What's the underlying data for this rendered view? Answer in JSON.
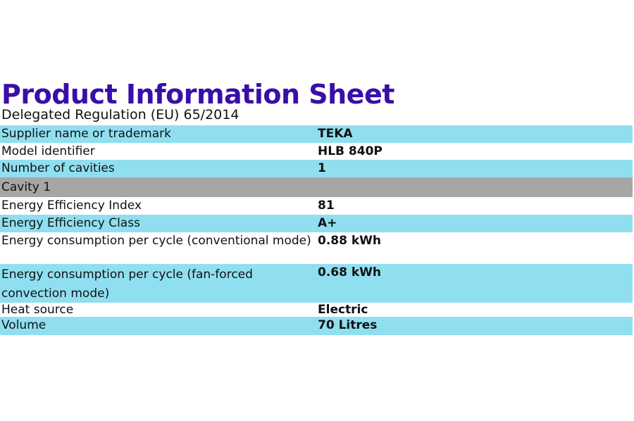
{
  "header": {
    "title": "Product Information Sheet",
    "subtitle": "Delegated Regulation (EU) 65/2014"
  },
  "table": {
    "rows": [
      [
        "Supplier name or trademark",
        "TEKA"
      ],
      [
        "Model identifier",
        "HLB 840P"
      ],
      [
        "Number of cavities",
        "1"
      ],
      [
        "Cavity 1"
      ],
      [
        "Energy Efficiency Index",
        "81"
      ],
      [
        "Energy Efficiency Class",
        "A+"
      ],
      [
        "Energy consumption per cycle (conventional mode)",
        "0.88 kWh"
      ],
      [
        "Energy consumption per cycle (fan-forced convection mode)",
        "0.68 kWh"
      ],
      [
        "Heat source",
        "Electric"
      ],
      [
        "Volume",
        "70 Litres"
      ]
    ]
  }
}
